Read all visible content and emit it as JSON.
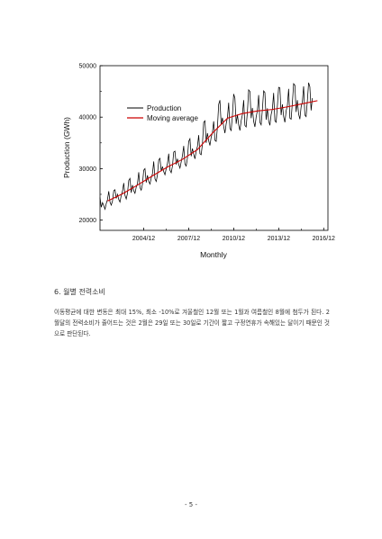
{
  "section_heading": "6. 월별 전력소비",
  "body_paragraph": "이동평균에 대한 변동은 최대 15%, 최소 -10%로 겨울철인 12월 또는 1월과 여름철인 8월에 첨두가 된다. 2월달의 전력소비가 줄어드는 것은 2월은 29일 또는 30일로 기간이 짧고 구정연휴가 속해있는 달이기 때문인 것으로 판단된다.",
  "page_number": "- 5 -",
  "chart_data": {
    "type": "line",
    "xlabel": "Monthly",
    "ylabel": "Production (GWh)",
    "ylim": [
      18000,
      50000
    ],
    "xlim": [
      2002.0,
      2017.2
    ],
    "y_ticks": [
      20000,
      30000,
      40000,
      50000
    ],
    "y_tick_labels": [
      "20000",
      "30000",
      "40000",
      "50000"
    ],
    "x_ticks": [
      2004.917,
      2007.917,
      2010.917,
      2013.917,
      2016.917
    ],
    "x_tick_labels": [
      "2004/12",
      "2007/12",
      "2010/12",
      "2013/12",
      "2016/12"
    ],
    "legend_placement": "top-left",
    "series": [
      {
        "name": "Production",
        "color": "#000000",
        "x_start": 2002.0,
        "x_step": 0.0833,
        "values": [
          24400,
          22500,
          23400,
          22800,
          22100,
          23200,
          24000,
          25600,
          23500,
          22900,
          23700,
          25700,
          25900,
          24200,
          25000,
          24000,
          23500,
          24800,
          25600,
          27200,
          24800,
          24100,
          25200,
          27700,
          28100,
          25300,
          26800,
          25700,
          25200,
          26400,
          27100,
          29300,
          26300,
          25800,
          27000,
          29700,
          30000,
          27300,
          28700,
          27500,
          27000,
          28200,
          29000,
          31400,
          28000,
          27500,
          28800,
          31700,
          32000,
          29500,
          30400,
          29400,
          28800,
          30000,
          31000,
          32900,
          29700,
          29200,
          30500,
          33200,
          33400,
          30800,
          31900,
          30800,
          30100,
          31300,
          32500,
          34400,
          30900,
          30500,
          32100,
          35300,
          35800,
          32400,
          33900,
          32800,
          31900,
          33400,
          34300,
          36500,
          32900,
          32700,
          34800,
          39000,
          39300,
          35000,
          36900,
          35400,
          34500,
          36100,
          37000,
          39200,
          35500,
          35300,
          38000,
          42500,
          43300,
          38600,
          39900,
          38200,
          36900,
          38700,
          39900,
          42800,
          37800,
          37400,
          40300,
          44500,
          43700,
          38700,
          40500,
          38500,
          37400,
          39300,
          40500,
          43300,
          38400,
          38100,
          41000,
          45300,
          45000,
          39800,
          41800,
          39200,
          38100,
          40000,
          41300,
          44300,
          39000,
          38500,
          41500,
          45100,
          44800,
          39500,
          41700,
          39300,
          38400,
          40500,
          41600,
          44700,
          39300,
          39000,
          42200,
          45800,
          45700,
          40400,
          42500,
          40100,
          39000,
          41200,
          42300,
          45500,
          39800,
          39600,
          42800,
          46500,
          46200,
          41000,
          43300,
          40600,
          39600,
          42000,
          43000,
          46000,
          40400,
          40100,
          43200,
          46700,
          45900,
          41300,
          43700
        ]
      },
      {
        "name": "Moving average",
        "color": "#cc0000",
        "x": [
          2002.5,
          2003.5,
          2004.5,
          2005.5,
          2006.5,
          2007.5,
          2008.5,
          2009.5,
          2010.5,
          2011.5,
          2012.5,
          2013.5,
          2014.5,
          2015.5,
          2016.5
        ],
        "values": [
          23700,
          25100,
          26800,
          28600,
          30300,
          31800,
          33700,
          36900,
          39800,
          40700,
          41200,
          41500,
          42000,
          42600,
          43200
        ]
      }
    ]
  }
}
